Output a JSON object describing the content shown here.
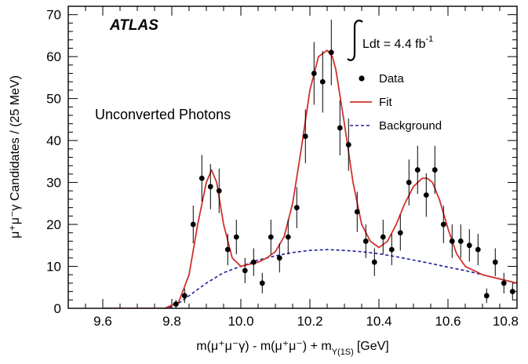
{
  "chart_data": {
    "type": "scatter",
    "experiment_label": "ATLAS",
    "luminosity_label": "Ldt = 4.4 fb",
    "luminosity_exponent": "-1",
    "annotation": "Unconverted Photons",
    "xlabel": {
      "main": "m(μ⁺μ⁻γ) - m(μ⁺μ⁻) + m",
      "subscript": "Υ(1S)",
      "unit": "[GeV]"
    },
    "ylabel": "μ⁺μ⁻γ Candidates / (25 MeV)",
    "xlim": [
      9.5,
      10.8
    ],
    "ylim": [
      0,
      72
    ],
    "x_ticks": [
      9.6,
      9.8,
      10.0,
      10.2,
      10.4,
      10.6,
      10.8
    ],
    "x_tick_labels": [
      "9.6",
      "9.8",
      "10.0",
      "10.2",
      "10.4",
      "10.6",
      "10.8"
    ],
    "y_ticks": [
      0,
      10,
      20,
      30,
      40,
      50,
      60,
      70
    ],
    "y_tick_labels": [
      "0",
      "10",
      "20",
      "30",
      "40",
      "50",
      "60",
      "70"
    ],
    "grid": false,
    "legend": {
      "position": "top-right",
      "entries": [
        {
          "label": "Data",
          "style": "marker",
          "color": "#000000"
        },
        {
          "label": "Fit",
          "style": "solid",
          "color": "#d0312d"
        },
        {
          "label": "Background",
          "style": "dashed",
          "color": "#1f1f9e"
        }
      ]
    },
    "series": [
      {
        "name": "Data",
        "style": "points",
        "color": "#000000",
        "x": [
          9.812,
          9.837,
          9.862,
          9.887,
          9.912,
          9.937,
          9.962,
          9.987,
          10.012,
          10.037,
          10.062,
          10.087,
          10.112,
          10.137,
          10.162,
          10.187,
          10.212,
          10.237,
          10.262,
          10.287,
          10.312,
          10.337,
          10.362,
          10.387,
          10.412,
          10.437,
          10.462,
          10.487,
          10.512,
          10.537,
          10.562,
          10.587,
          10.612,
          10.637,
          10.662,
          10.687,
          10.712,
          10.737,
          10.762,
          10.787
        ],
        "y": [
          1,
          3,
          20,
          31,
          29,
          28,
          14,
          17,
          9,
          11,
          6,
          17,
          12,
          17,
          24,
          41,
          56,
          54,
          61,
          43,
          39,
          23,
          16,
          11,
          17,
          14,
          18,
          30,
          33,
          27,
          33,
          20,
          16,
          16,
          15,
          14,
          3,
          11,
          6,
          4
        ]
      },
      {
        "name": "Fit",
        "style": "solid",
        "color": "#d0312d",
        "x": [
          9.6,
          9.78,
          9.82,
          9.85,
          9.875,
          9.9,
          9.915,
          9.93,
          9.95,
          9.975,
          10.0,
          10.025,
          10.05,
          10.075,
          10.1,
          10.125,
          10.15,
          10.175,
          10.2,
          10.225,
          10.25,
          10.265,
          10.275,
          10.3,
          10.325,
          10.35,
          10.375,
          10.4,
          10.425,
          10.45,
          10.475,
          10.5,
          10.525,
          10.54,
          10.555,
          10.575,
          10.6,
          10.625,
          10.65,
          10.7,
          10.75,
          10.8
        ],
        "y": [
          0,
          0,
          1.5,
          8,
          20,
          30,
          33,
          30,
          20,
          12,
          10,
          10.5,
          11,
          12,
          13.5,
          17,
          25,
          38,
          52,
          60,
          61.5,
          60,
          57,
          44,
          30,
          20,
          16,
          14.5,
          16,
          20,
          25,
          29,
          31,
          31,
          30,
          26,
          19,
          13,
          10,
          8,
          7,
          6
        ]
      },
      {
        "name": "Background",
        "style": "dashed",
        "color": "#1f1f9e",
        "x": [
          9.6,
          9.78,
          9.8,
          9.825,
          9.85,
          9.875,
          9.9,
          9.95,
          10.0,
          10.05,
          10.1,
          10.15,
          10.2,
          10.25,
          10.3,
          10.35,
          10.4,
          10.45,
          10.5,
          10.55,
          10.6,
          10.65,
          10.7,
          10.75,
          10.8
        ],
        "y": [
          0,
          0,
          0.4,
          1.5,
          3,
          4.5,
          6,
          8.5,
          10,
          11.5,
          12.5,
          13.3,
          13.8,
          14,
          13.8,
          13.5,
          13,
          12.3,
          11.5,
          10.7,
          9.8,
          9,
          8,
          7,
          6
        ]
      }
    ]
  }
}
